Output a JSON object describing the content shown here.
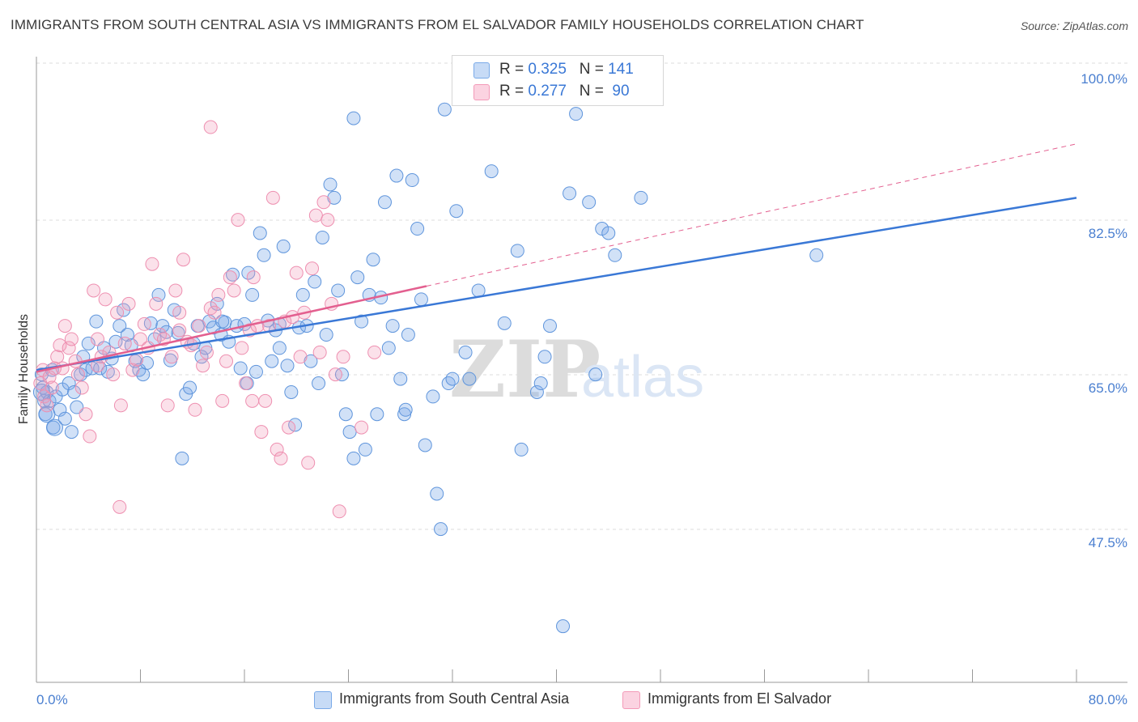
{
  "title": "IMMIGRANTS FROM SOUTH CENTRAL ASIA VS IMMIGRANTS FROM EL SALVADOR FAMILY HOUSEHOLDS CORRELATION CHART",
  "source": "Source: ZipAtlas.com",
  "watermark": {
    "zip": "ZIP",
    "atlas": "atlas"
  },
  "legend_top": [
    {
      "r_label": "R = ",
      "r_value": "0.325",
      "n_label": "N = ",
      "n_value": "141",
      "color": "#7aaae8"
    },
    {
      "r_label": "R = ",
      "r_value": "0.277",
      "n_label": "N = ",
      "n_value": " 90",
      "color": "#f39ab8"
    }
  ],
  "legend_bottom": [
    {
      "label": "Immigrants from South Central Asia",
      "color": "#7aaae8"
    },
    {
      "label": "Immigrants from El Salvador",
      "color": "#f39ab8"
    }
  ],
  "chart_data": {
    "type": "scatter",
    "title": "IMMIGRANTS FROM SOUTH CENTRAL ASIA VS IMMIGRANTS FROM EL SALVADOR FAMILY HOUSEHOLDS CORRELATION CHART",
    "xlabel": "",
    "ylabel": "Family Households",
    "xlim": [
      0,
      80
    ],
    "ylim": [
      30,
      104
    ],
    "x_tick_labels": [
      "0.0%",
      "80.0%"
    ],
    "y_ticks": [
      47.5,
      65.0,
      82.5,
      100.0
    ],
    "y_tick_labels": [
      "47.5%",
      "65.0%",
      "82.5%",
      "100.0%"
    ],
    "grid": true,
    "legend_position": "top-center",
    "series": [
      {
        "name": "Immigrants from South Central Asia",
        "color": "#7aaae8",
        "line_color": "#3a78d6",
        "trend": {
          "x": [
            0,
            80
          ],
          "y": [
            67.0,
            86.5
          ],
          "dashed_extension": false
        },
        "points": [
          [
            0.4,
            66.5
          ],
          [
            0.5,
            65.0
          ],
          [
            0.6,
            63.5
          ],
          [
            0.7,
            62.0
          ],
          [
            0.8,
            64.5
          ],
          [
            1.0,
            63.5
          ],
          [
            1.2,
            67.0
          ],
          [
            1.3,
            60.5
          ],
          [
            1.5,
            64.0
          ],
          [
            1.8,
            62.5
          ],
          [
            2.0,
            64.8
          ],
          [
            2.2,
            61.5
          ],
          [
            2.5,
            65.5
          ],
          [
            2.7,
            60.0
          ],
          [
            2.9,
            64.5
          ],
          [
            3.1,
            62.8
          ],
          [
            3.4,
            66.5
          ],
          [
            3.6,
            68.5
          ],
          [
            3.8,
            67.0
          ],
          [
            4.0,
            70.0
          ],
          [
            4.3,
            67.2
          ],
          [
            4.6,
            72.5
          ],
          [
            4.9,
            67.2
          ],
          [
            5.2,
            69.5
          ],
          [
            5.5,
            66.8
          ],
          [
            5.8,
            68.3
          ],
          [
            6.1,
            70.2
          ],
          [
            6.4,
            72.0
          ],
          [
            6.7,
            73.8
          ],
          [
            7.0,
            71.0
          ],
          [
            7.3,
            69.8
          ],
          [
            7.6,
            68.0
          ],
          [
            7.9,
            67.0
          ],
          [
            8.2,
            66.5
          ],
          [
            8.5,
            67.8
          ],
          [
            8.8,
            72.3
          ],
          [
            9.1,
            70.5
          ],
          [
            9.4,
            75.5
          ],
          [
            9.7,
            72.0
          ],
          [
            10.0,
            71.3
          ],
          [
            10.3,
            68.1
          ],
          [
            10.6,
            73.8
          ],
          [
            10.9,
            71.2
          ],
          [
            11.2,
            57.0
          ],
          [
            11.5,
            64.3
          ],
          [
            11.8,
            65.0
          ],
          [
            12.1,
            70.0
          ],
          [
            12.4,
            72.0
          ],
          [
            12.7,
            68.5
          ],
          [
            13.0,
            69.5
          ],
          [
            13.3,
            72.5
          ],
          [
            13.6,
            71.8
          ],
          [
            13.9,
            74.5
          ],
          [
            14.2,
            71.0
          ],
          [
            14.5,
            72.4
          ],
          [
            14.8,
            70.2
          ],
          [
            15.1,
            77.8
          ],
          [
            15.4,
            72.0
          ],
          [
            15.7,
            67.2
          ],
          [
            16.0,
            72.2
          ],
          [
            16.3,
            78.0
          ],
          [
            16.6,
            75.5
          ],
          [
            16.9,
            66.8
          ],
          [
            14.3,
            72.5
          ],
          [
            17.2,
            82.5
          ],
          [
            17.5,
            80.0
          ],
          [
            17.8,
            72.6
          ],
          [
            18.1,
            68.0
          ],
          [
            18.4,
            71.5
          ],
          [
            18.7,
            72.2
          ],
          [
            19.0,
            81.0
          ],
          [
            19.3,
            67.5
          ],
          [
            19.6,
            64.5
          ],
          [
            19.9,
            60.8
          ],
          [
            20.2,
            71.8
          ],
          [
            20.5,
            75.5
          ],
          [
            20.8,
            72.0
          ],
          [
            21.1,
            68.0
          ],
          [
            21.4,
            77.0
          ],
          [
            21.7,
            65.5
          ],
          [
            22.0,
            82.0
          ],
          [
            22.3,
            71.0
          ],
          [
            22.6,
            88.0
          ],
          [
            22.9,
            86.5
          ],
          [
            23.2,
            76.0
          ],
          [
            23.5,
            66.5
          ],
          [
            23.8,
            62.0
          ],
          [
            24.1,
            60.0
          ],
          [
            24.4,
            57.0
          ],
          [
            24.7,
            77.5
          ],
          [
            25.0,
            72.5
          ],
          [
            25.3,
            58.0
          ],
          [
            25.6,
            75.5
          ],
          [
            25.9,
            79.5
          ],
          [
            26.2,
            62.0
          ],
          [
            26.5,
            75.2
          ],
          [
            26.8,
            86.0
          ],
          [
            27.1,
            69.5
          ],
          [
            27.4,
            72.0
          ],
          [
            27.7,
            89.0
          ],
          [
            28.0,
            66.0
          ],
          [
            28.3,
            62.0
          ],
          [
            28.6,
            71.0
          ],
          [
            28.9,
            88.5
          ],
          [
            29.3,
            83.0
          ],
          [
            29.6,
            75.0
          ],
          [
            29.9,
            58.5
          ],
          [
            24.4,
            95.5
          ],
          [
            28.4,
            62.5
          ],
          [
            30.5,
            64.0
          ],
          [
            30.8,
            53.0
          ],
          [
            31.1,
            49.0
          ],
          [
            31.4,
            96.5
          ],
          [
            31.7,
            65.5
          ],
          [
            32.0,
            66.0
          ],
          [
            32.3,
            85.0
          ],
          [
            33.0,
            69.0
          ],
          [
            34.0,
            76.0
          ],
          [
            35.0,
            89.5
          ],
          [
            36.0,
            72.3
          ],
          [
            37.0,
            80.5
          ],
          [
            37.3,
            58.0
          ],
          [
            38.5,
            64.5
          ],
          [
            38.8,
            65.5
          ],
          [
            39.1,
            68.5
          ],
          [
            39.5,
            72.0
          ],
          [
            40.0,
            101.0
          ],
          [
            41.0,
            87.0
          ],
          [
            41.5,
            96.0
          ],
          [
            42.5,
            86.0
          ],
          [
            43.0,
            66.5
          ],
          [
            43.5,
            83.0
          ],
          [
            44.0,
            82.5
          ],
          [
            44.5,
            80.0
          ],
          [
            46.5,
            86.5
          ],
          [
            60.0,
            80.0
          ],
          [
            40.5,
            38.0
          ],
          [
            33.3,
            66.0
          ],
          [
            18.7,
            69.5
          ],
          [
            16.2,
            65.5
          ]
        ]
      },
      {
        "name": "Immigrants from El Salvador",
        "color": "#f39ab8",
        "line_color": "#e35f8f",
        "trend": {
          "x": [
            0,
            30
          ],
          "y": [
            66.8,
            76.5
          ],
          "dashed_extension": {
            "x": [
              30,
              80
            ],
            "y": [
              76.5,
              92.6
            ]
          }
        },
        "points": [
          [
            0.3,
            65.5
          ],
          [
            0.5,
            67.0
          ],
          [
            0.6,
            64.0
          ],
          [
            0.8,
            63.0
          ],
          [
            1.0,
            66.2
          ],
          [
            1.2,
            65.0
          ],
          [
            1.4,
            67.2
          ],
          [
            1.6,
            68.5
          ],
          [
            1.8,
            69.8
          ],
          [
            2.0,
            67.2
          ],
          [
            2.2,
            72.0
          ],
          [
            2.5,
            69.5
          ],
          [
            2.7,
            70.5
          ],
          [
            3.0,
            68.0
          ],
          [
            3.2,
            66.5
          ],
          [
            3.5,
            65.0
          ],
          [
            3.8,
            62.0
          ],
          [
            4.1,
            59.5
          ],
          [
            4.4,
            76.0
          ],
          [
            4.7,
            70.5
          ],
          [
            5.0,
            68.5
          ],
          [
            5.3,
            75.0
          ],
          [
            5.6,
            69.0
          ],
          [
            5.9,
            66.5
          ],
          [
            6.2,
            73.5
          ],
          [
            6.5,
            63.0
          ],
          [
            6.8,
            70.0
          ],
          [
            7.1,
            74.5
          ],
          [
            7.4,
            67.0
          ],
          [
            7.7,
            68.2
          ],
          [
            8.0,
            70.5
          ],
          [
            8.3,
            72.2
          ],
          [
            8.6,
            69.5
          ],
          [
            8.9,
            79.0
          ],
          [
            9.2,
            74.5
          ],
          [
            9.5,
            71.0
          ],
          [
            9.8,
            70.5
          ],
          [
            10.1,
            63.0
          ],
          [
            10.4,
            68.5
          ],
          [
            10.7,
            76.0
          ],
          [
            11.0,
            73.5
          ],
          [
            11.3,
            79.5
          ],
          [
            11.6,
            70.2
          ],
          [
            11.9,
            69.8
          ],
          [
            12.2,
            62.5
          ],
          [
            12.5,
            72.0
          ],
          [
            12.8,
            67.5
          ],
          [
            13.1,
            69.0
          ],
          [
            13.4,
            74.0
          ],
          [
            13.7,
            73.5
          ],
          [
            14.0,
            75.5
          ],
          [
            14.3,
            63.5
          ],
          [
            14.6,
            68.0
          ],
          [
            14.9,
            77.5
          ],
          [
            15.2,
            76.0
          ],
          [
            15.5,
            84.0
          ],
          [
            15.8,
            69.5
          ],
          [
            16.1,
            65.5
          ],
          [
            16.4,
            71.5
          ],
          [
            16.7,
            77.5
          ],
          [
            17.0,
            72.0
          ],
          [
            17.3,
            60.0
          ],
          [
            17.6,
            63.5
          ],
          [
            17.9,
            72.0
          ],
          [
            18.2,
            86.5
          ],
          [
            18.5,
            58.0
          ],
          [
            18.8,
            57.0
          ],
          [
            19.1,
            72.5
          ],
          [
            19.4,
            60.5
          ],
          [
            19.7,
            73.0
          ],
          [
            20.0,
            78.0
          ],
          [
            20.3,
            68.5
          ],
          [
            20.6,
            73.5
          ],
          [
            20.9,
            56.5
          ],
          [
            21.2,
            78.5
          ],
          [
            21.5,
            84.5
          ],
          [
            21.8,
            69.0
          ],
          [
            22.1,
            86.0
          ],
          [
            22.4,
            84.0
          ],
          [
            22.7,
            74.5
          ],
          [
            23.0,
            66.5
          ],
          [
            23.3,
            51.0
          ],
          [
            23.6,
            68.5
          ],
          [
            13.4,
            94.5
          ],
          [
            25.0,
            60.5
          ],
          [
            6.4,
            51.5
          ],
          [
            26.0,
            69.0
          ],
          [
            16.6,
            63.5
          ],
          [
            4.7,
            67.5
          ],
          [
            11.0,
            71.5
          ]
        ]
      }
    ]
  }
}
